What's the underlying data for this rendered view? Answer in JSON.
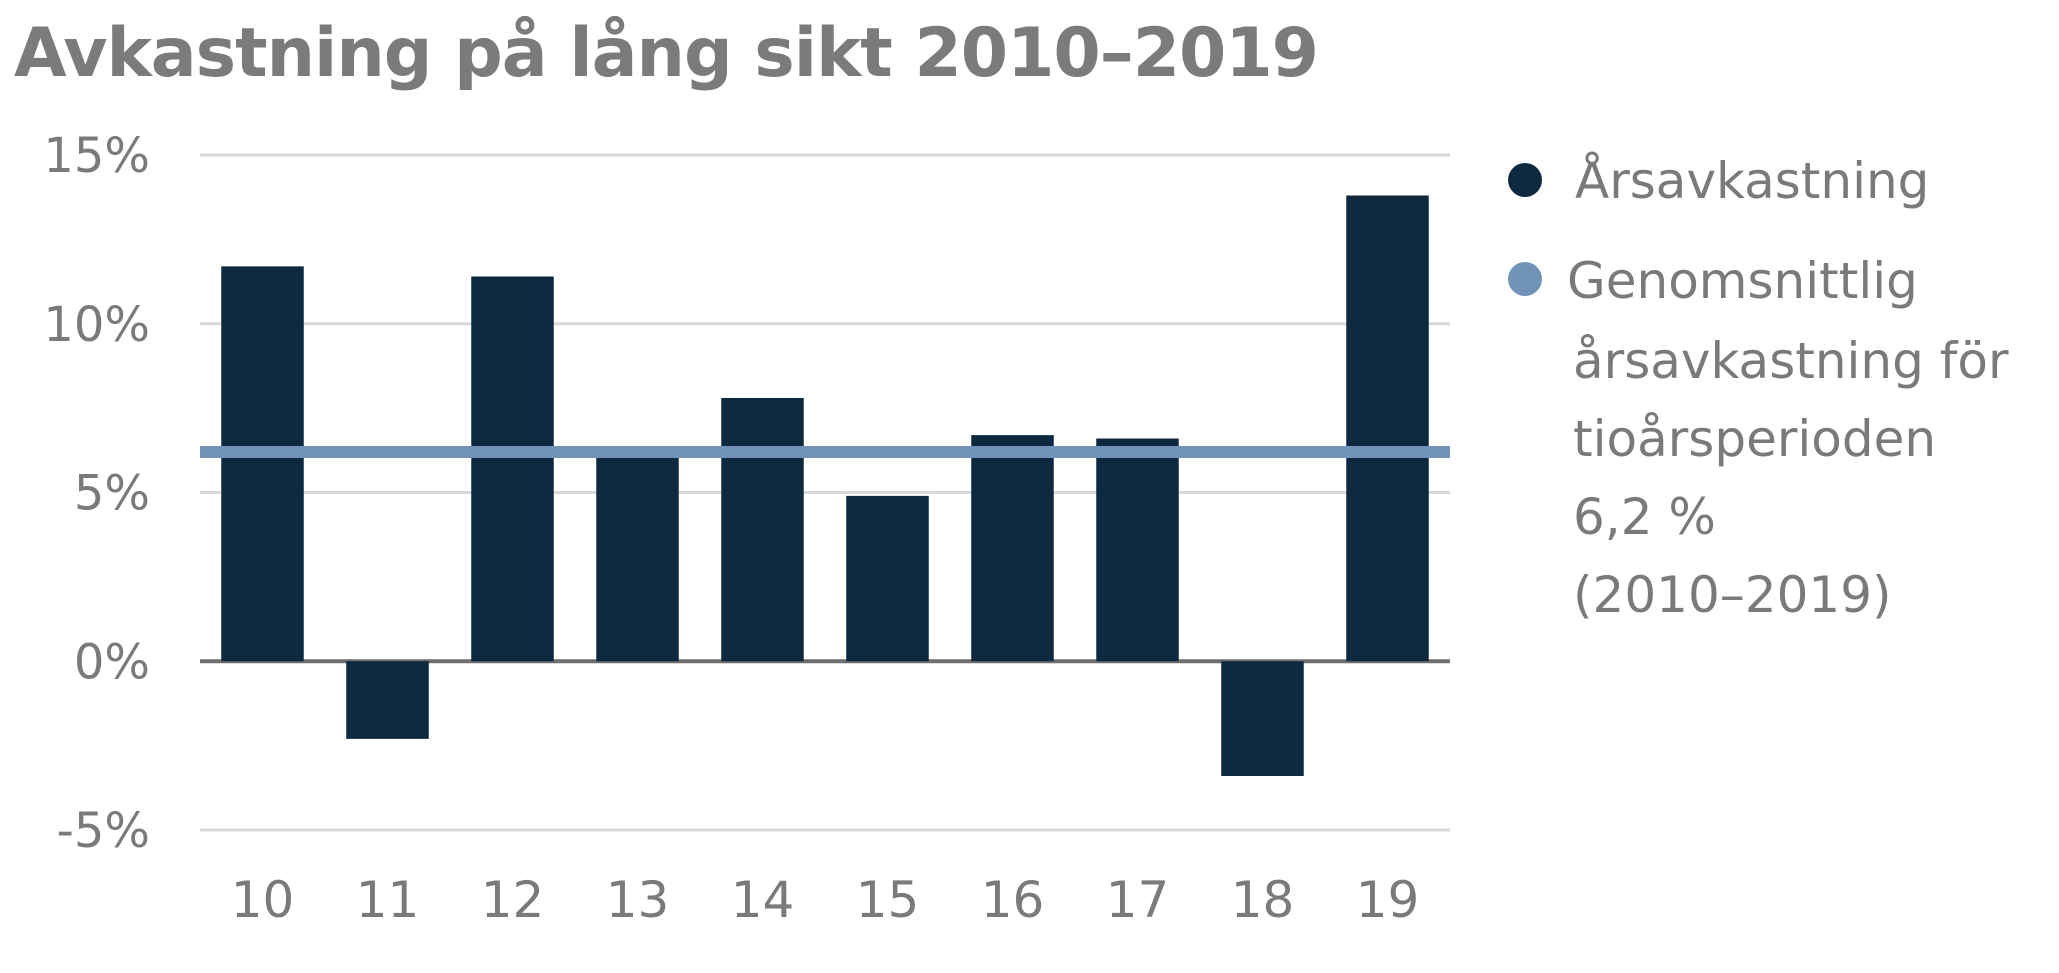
{
  "chart_data": {
    "type": "bar",
    "title": "Avkastning på lång sikt 2010–2019",
    "categories": [
      "10",
      "11",
      "12",
      "13",
      "14",
      "15",
      "16",
      "17",
      "18",
      "19"
    ],
    "series": [
      {
        "name": "Årsavkastning",
        "values": [
          11.7,
          -2.3,
          11.4,
          6.1,
          7.8,
          4.9,
          6.7,
          6.6,
          -3.4,
          13.8
        ]
      }
    ],
    "reference_line": {
      "value": 6.2,
      "legend_lines": [
        "Genomsnittlig",
        "årsavkastning för",
        "tioårsperioden",
        "6,2 %",
        "(2010–2019)"
      ]
    },
    "y_ticks": [
      {
        "value": 15,
        "label": "15%"
      },
      {
        "value": 10,
        "label": "10%"
      },
      {
        "value": 5,
        "label": "5%"
      },
      {
        "value": 0,
        "label": "0%"
      },
      {
        "value": -5,
        "label": "-5%"
      }
    ],
    "ylim": [
      -5,
      15
    ],
    "xlabel": "",
    "ylabel": "",
    "grid": true,
    "legend_position": "right",
    "colors": {
      "bar": "#0d293f",
      "average": "#7293b8",
      "grid": "#d9d9d9",
      "zero": "#6e6e6e",
      "text": "#7a7a7a"
    }
  }
}
